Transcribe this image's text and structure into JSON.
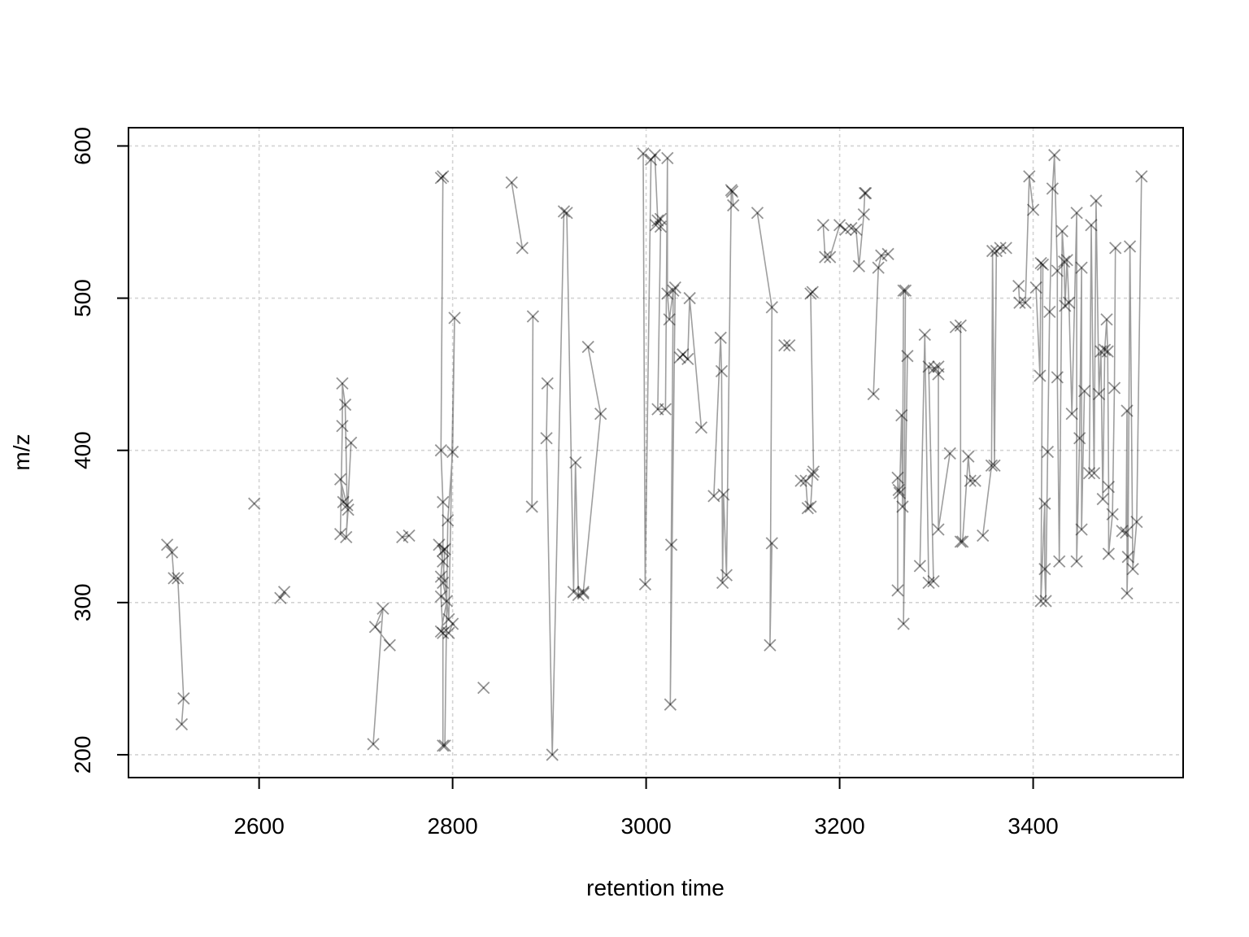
{
  "chart_data": {
    "type": "scatter",
    "xlabel": "retention time",
    "ylabel": "m/z",
    "xlim": [
      2465,
      3555
    ],
    "ylim": [
      185,
      612
    ],
    "xticks": [
      2600,
      2800,
      3000,
      3200,
      3400
    ],
    "yticks": [
      200,
      300,
      400,
      500,
      600
    ],
    "grid": true,
    "marker": "x",
    "color": "#000000",
    "groups": [
      {
        "points": [
          [
            2505,
            338
          ],
          [
            2510,
            333
          ],
          [
            2512,
            316
          ],
          [
            2516,
            316
          ],
          [
            2522,
            237
          ],
          [
            2520,
            220
          ]
        ]
      },
      {
        "points": [
          [
            2595,
            365
          ]
        ]
      },
      {
        "points": [
          [
            2622,
            303
          ],
          [
            2626,
            307
          ]
        ]
      },
      {
        "points": [
          [
            2684,
            345
          ],
          [
            2686,
            416
          ],
          [
            2686,
            444
          ],
          [
            2689,
            430
          ],
          [
            2691,
            364
          ],
          [
            2687,
            366
          ],
          [
            2684,
            381
          ],
          [
            2692,
            361
          ],
          [
            2690,
            343
          ],
          [
            2695,
            405
          ]
        ]
      },
      {
        "points": [
          [
            2718,
            207
          ],
          [
            2728,
            296
          ],
          [
            2720,
            284
          ],
          [
            2735,
            272
          ]
        ]
      },
      {
        "points": [
          [
            2748,
            343
          ],
          [
            2755,
            344
          ]
        ]
      },
      {
        "points": [
          [
            2788,
            579
          ],
          [
            2790,
            580
          ],
          [
            2788,
            400
          ],
          [
            2790,
            366
          ],
          [
            2790,
            334
          ],
          [
            2788,
            317
          ],
          [
            2788,
            304
          ],
          [
            2790,
            280
          ],
          [
            2790,
            206
          ],
          [
            2792,
            206
          ],
          [
            2795,
            354
          ],
          [
            2800,
            399
          ],
          [
            2802,
            487
          ],
          [
            2796,
            289
          ],
          [
            2790,
            327
          ],
          [
            2786,
            338
          ],
          [
            2792,
            335
          ],
          [
            2790,
            313
          ],
          [
            2794,
            301
          ],
          [
            2788,
            281
          ],
          [
            2796,
            280
          ],
          [
            2800,
            286
          ]
        ]
      },
      {
        "points": [
          [
            2832,
            244
          ]
        ]
      },
      {
        "points": [
          [
            2861,
            576
          ],
          [
            2872,
            533
          ]
        ]
      },
      {
        "points": [
          [
            2883,
            488
          ],
          [
            2882,
            363
          ]
        ]
      },
      {
        "points": [
          [
            2898,
            444
          ],
          [
            2897,
            408
          ],
          [
            2903,
            200
          ],
          [
            2915,
            557
          ],
          [
            2918,
            556
          ],
          [
            2925,
            307
          ],
          [
            2927,
            392
          ],
          [
            2930,
            305
          ],
          [
            2935,
            306
          ]
        ]
      },
      {
        "points": [
          [
            2940,
            468
          ],
          [
            2953,
            424
          ],
          [
            2935,
            307
          ]
        ]
      },
      {
        "points": [
          [
            2997,
            595
          ],
          [
            2999,
            312
          ],
          [
            3005,
            591
          ],
          [
            3009,
            594
          ],
          [
            3012,
            551
          ],
          [
            3010,
            548
          ],
          [
            3015,
            552
          ],
          [
            3015,
            547
          ],
          [
            3012,
            427
          ],
          [
            3020,
            427
          ],
          [
            3022,
            592
          ],
          [
            3022,
            503
          ],
          [
            3024,
            486
          ],
          [
            3028,
            505
          ],
          [
            3026,
            338
          ],
          [
            3025,
            233
          ],
          [
            3030,
            507
          ]
        ]
      },
      {
        "points": [
          [
            3035,
            461
          ],
          [
            3038,
            463
          ],
          [
            3043,
            460
          ],
          [
            3045,
            500
          ],
          [
            3057,
            415
          ]
        ]
      },
      {
        "points": [
          [
            3070,
            370
          ],
          [
            3077,
            474
          ],
          [
            3078,
            452
          ],
          [
            3079,
            313
          ],
          [
            3080,
            371
          ],
          [
            3083,
            318
          ],
          [
            3088,
            571
          ],
          [
            3089,
            570
          ],
          [
            3090,
            561
          ]
        ]
      },
      {
        "points": [
          [
            3115,
            556
          ],
          [
            3130,
            494
          ],
          [
            3128,
            272
          ],
          [
            3130,
            339
          ]
        ]
      },
      {
        "points": [
          [
            3143,
            469
          ],
          [
            3148,
            469
          ]
        ]
      },
      {
        "points": [
          [
            3160,
            380
          ],
          [
            3165,
            380
          ],
          [
            3167,
            362
          ],
          [
            3170,
            363
          ],
          [
            3172,
            384
          ],
          [
            3173,
            386
          ],
          [
            3170,
            503
          ],
          [
            3172,
            504
          ]
        ]
      },
      {
        "points": [
          [
            3183,
            548
          ],
          [
            3185,
            527
          ],
          [
            3190,
            527
          ],
          [
            3200,
            548
          ],
          [
            3206,
            545
          ]
        ]
      },
      {
        "points": [
          [
            3212,
            546
          ],
          [
            3217,
            545
          ],
          [
            3220,
            521
          ],
          [
            3225,
            555
          ],
          [
            3226,
            569
          ],
          [
            3227,
            569
          ]
        ]
      },
      {
        "points": [
          [
            3235,
            437
          ],
          [
            3240,
            520
          ],
          [
            3243,
            528
          ],
          [
            3250,
            529
          ]
        ]
      },
      {
        "points": [
          [
            3260,
            308
          ],
          [
            3260,
            382
          ],
          [
            3261,
            374
          ],
          [
            3262,
            372
          ],
          [
            3264,
            423
          ],
          [
            3265,
            363
          ],
          [
            3266,
            505
          ],
          [
            3268,
            505
          ],
          [
            3266,
            286
          ],
          [
            3270,
            462
          ]
        ]
      },
      {
        "points": [
          [
            3283,
            324
          ],
          [
            3288,
            476
          ],
          [
            3292,
            313
          ],
          [
            3297,
            314
          ],
          [
            3292,
            455
          ],
          [
            3298,
            454
          ],
          [
            3302,
            455
          ],
          [
            3302,
            450
          ],
          [
            3302,
            348
          ],
          [
            3314,
            398
          ]
        ]
      },
      {
        "points": [
          [
            3320,
            481
          ],
          [
            3325,
            482
          ],
          [
            3325,
            340
          ],
          [
            3327,
            340
          ],
          [
            3333,
            396
          ],
          [
            3335,
            380
          ],
          [
            3340,
            380
          ]
        ]
      },
      {
        "points": [
          [
            3348,
            344
          ],
          [
            3357,
            390
          ],
          [
            3358,
            531
          ],
          [
            3360,
            390
          ],
          [
            3362,
            531
          ],
          [
            3366,
            533
          ],
          [
            3372,
            533
          ]
        ]
      },
      {
        "points": [
          [
            3385,
            508
          ],
          [
            3386,
            497
          ],
          [
            3392,
            497
          ],
          [
            3396,
            580
          ],
          [
            3400,
            558
          ]
        ]
      },
      {
        "points": [
          [
            3403,
            507
          ],
          [
            3407,
            449
          ],
          [
            3408,
            523
          ],
          [
            3410,
            522
          ],
          [
            3408,
            301
          ],
          [
            3412,
            365
          ],
          [
            3412,
            322
          ],
          [
            3413,
            301
          ],
          [
            3415,
            399
          ],
          [
            3417,
            491
          ],
          [
            3420,
            572
          ],
          [
            3422,
            594
          ],
          [
            3425,
            518
          ],
          [
            3425,
            448
          ],
          [
            3427,
            327
          ],
          [
            3430,
            544
          ],
          [
            3432,
            524
          ],
          [
            3433,
            495
          ],
          [
            3435,
            525
          ],
          [
            3437,
            497
          ],
          [
            3440,
            424
          ],
          [
            3445,
            556
          ],
          [
            3445,
            327
          ],
          [
            3448,
            408
          ],
          [
            3450,
            520
          ],
          [
            3450,
            348
          ],
          [
            3453,
            439
          ]
        ]
      },
      {
        "points": [
          [
            3458,
            385
          ],
          [
            3460,
            548
          ],
          [
            3463,
            385
          ],
          [
            3465,
            564
          ],
          [
            3468,
            437
          ],
          [
            3470,
            465
          ],
          [
            3472,
            368
          ],
          [
            3474,
            466
          ],
          [
            3476,
            486
          ],
          [
            3477,
            465
          ],
          [
            3478,
            376
          ],
          [
            3478,
            332
          ],
          [
            3482,
            358
          ],
          [
            3484,
            441
          ],
          [
            3485,
            533
          ]
        ]
      },
      {
        "points": [
          [
            3492,
            347
          ],
          [
            3496,
            346
          ],
          [
            3497,
            426
          ],
          [
            3497,
            306
          ],
          [
            3498,
            330
          ],
          [
            3500,
            534
          ],
          [
            3503,
            322
          ],
          [
            3507,
            353
          ],
          [
            3512,
            580
          ]
        ]
      }
    ]
  }
}
